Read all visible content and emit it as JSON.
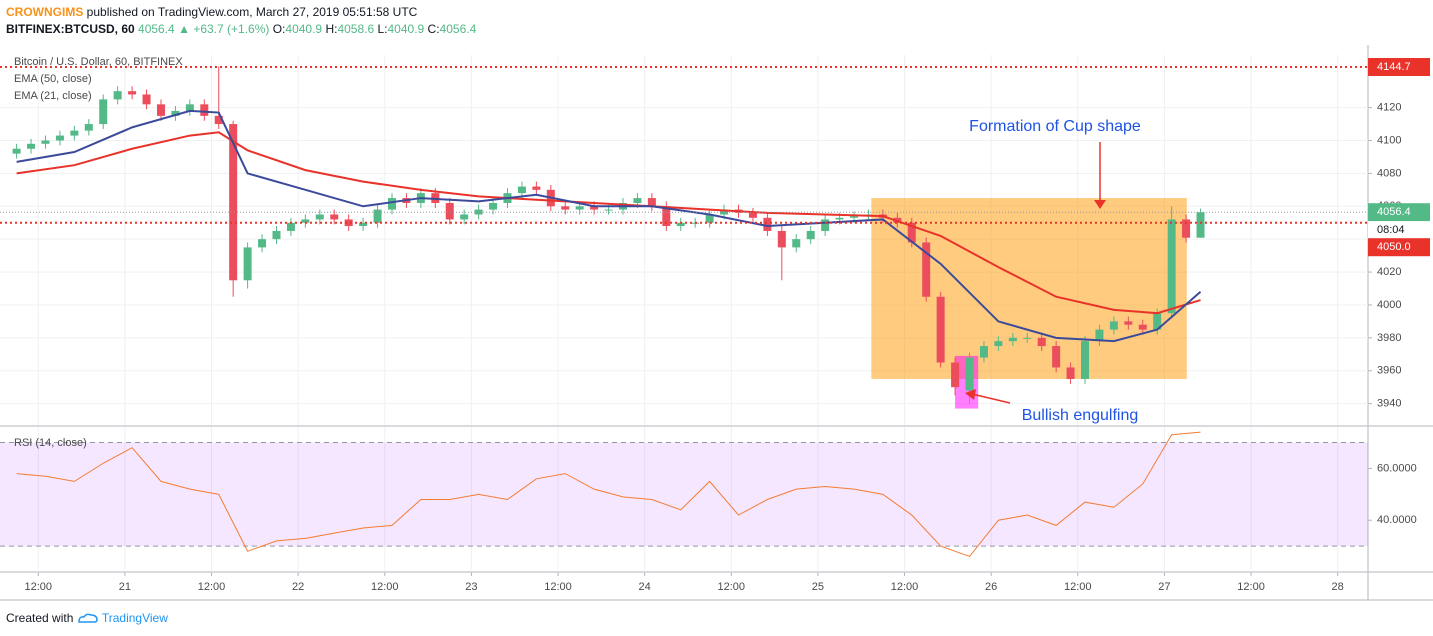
{
  "header": {
    "author": "CROWNGIMS",
    "published": "published on TradingView.com, March 27, 2019 05:51:58 UTC",
    "symbol": "BITFINEX:BTCUSD, 60",
    "last": "4056.4",
    "change": "+63.7 (+1.6%)",
    "ohlc": [
      {
        "label": "O:",
        "value": "4040.9"
      },
      {
        "label": "H:",
        "value": "4058.6"
      },
      {
        "label": "L:",
        "value": "4040.9"
      },
      {
        "label": "C:",
        "value": "4056.4"
      }
    ]
  },
  "chart_data": [
    {
      "type": "candlestick",
      "title": "Bitcoin / U.S. Dollar, 60, BITFINEX",
      "up_color": "#53b987",
      "down_color": "#eb4d5c",
      "x": [
        9,
        11,
        13,
        15,
        17,
        19,
        21,
        23,
        25,
        27,
        29,
        31,
        33,
        35,
        37,
        39,
        41,
        43,
        45,
        47,
        49,
        51,
        53,
        55,
        57,
        59,
        61,
        63,
        65,
        67,
        69,
        71,
        73,
        75,
        77,
        79,
        81,
        83,
        85,
        87,
        89,
        91,
        93,
        95,
        97,
        99,
        101,
        103,
        105,
        107,
        109,
        111,
        113,
        115,
        117,
        119,
        121,
        123,
        125,
        127,
        129,
        131,
        133,
        135,
        137,
        139,
        141,
        143,
        145,
        147,
        149,
        151,
        153,
        155,
        157,
        159,
        161,
        163,
        165,
        167,
        169,
        171,
        173
      ],
      "open": [
        4092,
        4095,
        4098,
        4100,
        4103,
        4106,
        4110,
        4125,
        4130,
        4128,
        4122,
        4115,
        4118,
        4122,
        4115,
        4110,
        4015,
        4035,
        4040,
        4045,
        4050,
        4052,
        4055,
        4052,
        4048,
        4050,
        4058,
        4065,
        4062,
        4068,
        4062,
        4052,
        4055,
        4058,
        4062,
        4068,
        4072,
        4070,
        4060,
        4058,
        4060,
        4058,
        4058,
        4062,
        4065,
        4060,
        4048,
        4050,
        4050,
        4055,
        4058,
        4056,
        4053,
        4045,
        4035,
        4040,
        4045,
        4052,
        4053,
        4054,
        4055,
        4053,
        4050,
        4038,
        4005,
        3965,
        3948,
        3968,
        3975,
        3978,
        3980,
        3980,
        3975,
        3962,
        3955,
        3978,
        3985,
        3990,
        3988,
        3985,
        3995,
        4052,
        4040.9
      ],
      "high": [
        4098,
        4101,
        4103,
        4106,
        4109,
        4113,
        4128,
        4133,
        4133,
        4131,
        4125,
        4121,
        4125,
        4125,
        4145,
        4112,
        4038,
        4043,
        4048,
        4053,
        4055,
        4058,
        4058,
        4055,
        4053,
        4061,
        4068,
        4068,
        4071,
        4071,
        4065,
        4058,
        4061,
        4065,
        4071,
        4075,
        4075,
        4073,
        4063,
        4063,
        4063,
        4061,
        4065,
        4068,
        4068,
        4063,
        4053,
        4053,
        4058,
        4061,
        4061,
        4059,
        4056,
        4048,
        4043,
        4048,
        4055,
        4056,
        4057,
        4058,
        4058,
        4056,
        4053,
        4041,
        4008,
        3968,
        3971,
        3978,
        3981,
        3983,
        3983,
        3983,
        3978,
        3965,
        3981,
        3988,
        3993,
        3993,
        3991,
        3998,
        4060,
        4055,
        4058.6
      ],
      "low": [
        4089,
        4092,
        4095,
        4097,
        4100,
        4103,
        4107,
        4122,
        4125,
        4119,
        4112,
        4112,
        4115,
        4112,
        4107,
        4005,
        4010,
        4032,
        4037,
        4042,
        4047,
        4049,
        4049,
        4045,
        4045,
        4047,
        4055,
        4059,
        4059,
        4059,
        4049,
        4049,
        4052,
        4055,
        4059,
        4065,
        4067,
        4057,
        4055,
        4055,
        4055,
        4055,
        4055,
        4059,
        4057,
        4045,
        4045,
        4047,
        4047,
        4052,
        4053,
        4050,
        4042,
        4015,
        4032,
        4037,
        4042,
        4049,
        4050,
        4051,
        4050,
        4047,
        4035,
        4002,
        3962,
        3945,
        3940,
        3965,
        3972,
        3975,
        3977,
        3972,
        3959,
        3952,
        3952,
        3975,
        3982,
        3985,
        3982,
        3982,
        3992,
        4038,
        4040.9
      ],
      "close": [
        4095,
        4098,
        4100,
        4103,
        4106,
        4110,
        4125,
        4130,
        4128,
        4122,
        4115,
        4118,
        4122,
        4115,
        4110,
        4015,
        4035,
        4040,
        4045,
        4050,
        4052,
        4055,
        4052,
        4048,
        4050,
        4058,
        4065,
        4062,
        4068,
        4062,
        4052,
        4055,
        4058,
        4062,
        4068,
        4072,
        4070,
        4060,
        4058,
        4060,
        4058,
        4058,
        4062,
        4065,
        4060,
        4048,
        4050,
        4050,
        4055,
        4058,
        4056,
        4053,
        4045,
        4035,
        4040,
        4045,
        4052,
        4053,
        4054,
        4055,
        4053,
        4050,
        4038,
        4005,
        3965,
        3950,
        3968,
        3975,
        3978,
        3980,
        3980,
        3975,
        3962,
        3955,
        3978,
        3985,
        3990,
        3988,
        3985,
        3995,
        4052,
        4040.9,
        4056.4
      ],
      "series": [
        {
          "name": "EMA (50, close)",
          "color": "#e8322a",
          "x": [
            9,
            17,
            25,
            33,
            37,
            41,
            49,
            57,
            65,
            73,
            81,
            89,
            97,
            105,
            113,
            121,
            129,
            137,
            145,
            153,
            161,
            167,
            173
          ],
          "values": [
            4080,
            4085,
            4095,
            4103,
            4105,
            4094,
            4082,
            4075,
            4070,
            4066,
            4064,
            4062,
            4060,
            4058,
            4056,
            4055,
            4054,
            4042,
            4023,
            4005,
            3997,
            3995,
            4003
          ]
        },
        {
          "name": "EMA (21, close)",
          "color": "#3b4a9a",
          "x": [
            9,
            17,
            25,
            33,
            37,
            41,
            49,
            57,
            65,
            73,
            81,
            89,
            97,
            105,
            113,
            121,
            129,
            137,
            145,
            153,
            161,
            167,
            173
          ],
          "values": [
            4087,
            4093,
            4108,
            4118,
            4117,
            4080,
            4070,
            4060,
            4065,
            4063,
            4067,
            4060,
            4060,
            4055,
            4048,
            4050,
            4052,
            4025,
            3990,
            3980,
            3978,
            3985,
            4008
          ]
        }
      ],
      "xlim": [
        6.7,
        196.2
      ],
      "xticks": [
        {
          "value": 12,
          "label": "12:00"
        },
        {
          "value": 24,
          "label": "21"
        },
        {
          "value": 36,
          "label": "12:00"
        },
        {
          "value": 48,
          "label": "22"
        },
        {
          "value": 60,
          "label": "12:00"
        },
        {
          "value": 72,
          "label": "23"
        },
        {
          "value": 84,
          "label": "12:00"
        },
        {
          "value": 96,
          "label": "24"
        },
        {
          "value": 108,
          "label": "12:00"
        },
        {
          "value": 120,
          "label": "25"
        },
        {
          "value": 132,
          "label": "12:00"
        },
        {
          "value": 144,
          "label": "26"
        },
        {
          "value": 156,
          "label": "12:00"
        },
        {
          "value": 168,
          "label": "27"
        },
        {
          "value": 180,
          "label": "12:00"
        },
        {
          "value": 192,
          "label": "28"
        }
      ],
      "ylim": [
        3927,
        4152
      ],
      "yticks": [
        3940,
        3960,
        3980,
        4000,
        4020,
        4040,
        4060,
        4080,
        4100,
        4120
      ],
      "hlines": [
        {
          "value": 4144.7,
          "label": "4144.7",
          "color": "#e8322a"
        },
        {
          "value": 4050,
          "label": "4050.0",
          "color": "#e8322a"
        }
      ],
      "last": 4056.4,
      "countdown": "08:04",
      "boxes": [
        {
          "x": [
            127.4,
            171.1
          ],
          "y": [
            3955,
            4065
          ],
          "color": "#ff9800"
        },
        {
          "x": [
            139.0,
            142.2
          ],
          "y": [
            3937,
            3969
          ],
          "color": "#ff00ff"
        }
      ],
      "annotations": [
        "Formation of Cup shape",
        "Bullish engulfing"
      ]
    },
    {
      "type": "line",
      "title": "RSI (14, close)",
      "color": "#f57c33",
      "x": [
        9,
        13,
        17,
        21,
        25,
        29,
        33,
        37,
        41,
        45,
        49,
        53,
        57,
        61,
        65,
        69,
        73,
        77,
        81,
        85,
        89,
        93,
        97,
        101,
        105,
        109,
        113,
        117,
        121,
        125,
        129,
        133,
        137,
        141,
        145,
        149,
        153,
        157,
        161,
        165,
        169,
        173
      ],
      "values": [
        58,
        57,
        55,
        62,
        68,
        55,
        52,
        50,
        28,
        32,
        33,
        35,
        37,
        38,
        48,
        48,
        50,
        48,
        56,
        58,
        52,
        49,
        48,
        44,
        55,
        42,
        48,
        52,
        53,
        52,
        50,
        42,
        30,
        26,
        40,
        42,
        38,
        47,
        45,
        54,
        73,
        74
      ],
      "band": [
        30,
        70
      ],
      "ylim": [
        20,
        76
      ],
      "yticks": [
        {
          "value": 40,
          "label": "40.0000"
        },
        {
          "value": 60,
          "label": "60.0000"
        }
      ]
    }
  ],
  "footer": {
    "created": "Created with",
    "brand": "TradingView"
  }
}
